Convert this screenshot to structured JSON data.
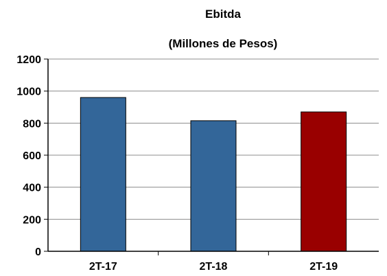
{
  "chart_data": {
    "type": "bar",
    "title": "Ebitda",
    "subtitle": "(Millones de Pesos)",
    "xlabel": "",
    "ylabel": "",
    "categories": [
      "2T-17",
      "2T-18",
      "2T-19"
    ],
    "values": [
      960,
      815,
      870
    ],
    "bar_colors": [
      "#336699",
      "#336699",
      "#990000"
    ],
    "ylim": [
      0,
      1200
    ],
    "yticks": [
      0,
      200,
      400,
      600,
      800,
      1000,
      1200
    ],
    "grid": true,
    "legend": "none"
  }
}
